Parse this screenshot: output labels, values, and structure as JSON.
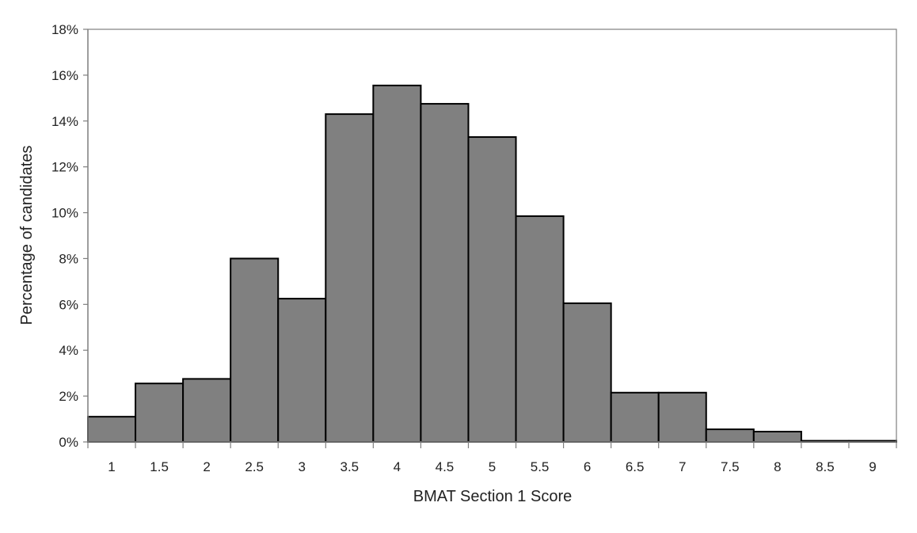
{
  "chart_data": {
    "type": "bar",
    "title": "",
    "xlabel": "BMAT Section 1 Score",
    "ylabel": "Percentage of candidates",
    "categories": [
      "1",
      "1.5",
      "2",
      "2.5",
      "3",
      "3.5",
      "4",
      "4.5",
      "5",
      "5.5",
      "6",
      "6.5",
      "7",
      "7.5",
      "8",
      "8.5",
      "9"
    ],
    "values": [
      1.1,
      2.55,
      2.75,
      8.0,
      6.25,
      14.3,
      15.55,
      14.75,
      13.3,
      9.85,
      6.05,
      2.15,
      2.15,
      0.55,
      0.45,
      0.05,
      0.05
    ],
    "ylim": [
      0,
      18
    ],
    "yticks": [
      0,
      2,
      4,
      6,
      8,
      10,
      12,
      14,
      16,
      18
    ],
    "ytick_labels": [
      "0%",
      "2%",
      "4%",
      "6%",
      "8%",
      "10%",
      "12%",
      "14%",
      "16%",
      "18%"
    ],
    "bar_color": "#808080",
    "bar_edge_color": "#000000",
    "grid": false,
    "legend": "none"
  }
}
